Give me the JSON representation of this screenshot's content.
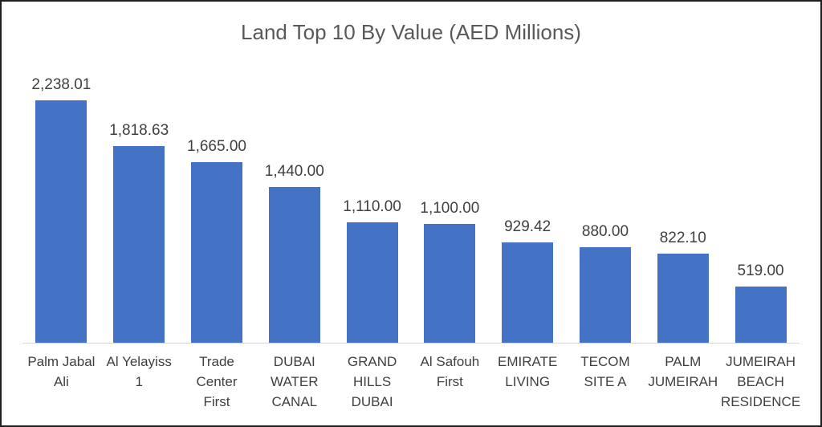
{
  "chart_data": {
    "type": "bar",
    "title": "Land Top 10 By Value (AED Millions)",
    "categories": [
      "Palm Jabal Ali",
      "Al Yelayiss 1",
      "Trade Center First",
      "DUBAI WATER CANAL",
      "GRAND HILLS DUBAI",
      "Al Safouh First",
      "EMIRATE LIVING",
      "TECOM SITE A",
      "PALM JUMEIRAH",
      "JUMEIRAH BEACH RESIDENCE"
    ],
    "category_lines": [
      "Palm Jabal\nAli",
      "Al Yelayiss\n1",
      "Trade\nCenter\nFirst",
      "DUBAI\nWATER\nCANAL",
      "GRAND\nHILLS\nDUBAI",
      "Al Safouh\nFirst",
      "EMIRATE\nLIVING",
      "TECOM\nSITE A",
      "PALM\nJUMEIRAH",
      "JUMEIRAH\nBEACH\nRESIDENCE"
    ],
    "values": [
      2238.01,
      1818.63,
      1665.0,
      1440.0,
      1110.0,
      1100.0,
      929.42,
      880.0,
      822.1,
      519.0
    ],
    "value_labels": [
      "2,238.01",
      "1,818.63",
      "1,665.00",
      "1,440.00",
      "1,110.00",
      "1,100.00",
      "929.42",
      "880.00",
      "822.10",
      "519.00"
    ],
    "xlabel": "",
    "ylabel": "",
    "ylim": [
      0,
      2400
    ],
    "grid": false,
    "legend": "none",
    "y_axis_visible": false,
    "data_labels_position": "above bars",
    "bar_color": "#4472C4",
    "title_color": "#595959",
    "label_color": "#404040",
    "axis_line_color": "#d6d6d6"
  }
}
